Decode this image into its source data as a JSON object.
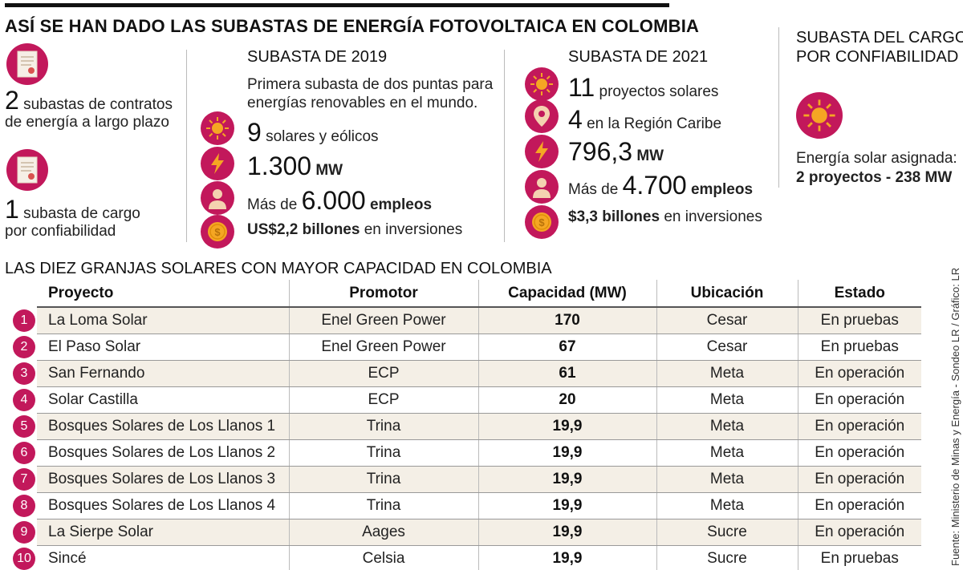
{
  "title": "ASÍ SE HAN DADO LAS SUBASTAS DE ENERGÍA FOTOVOLTAICA EN COLOMBIA",
  "left_panel": {
    "stat1_num": "2",
    "stat1_text_a": "subastas de contratos",
    "stat1_text_b": "de energía a largo plazo",
    "stat2_num": "1",
    "stat2_text_a": "subasta de cargo",
    "stat2_text_b": "por confiabilidad"
  },
  "subasta_2019": {
    "heading": "SUBASTA DE 2019",
    "description": "Primera subasta de dos puntas para energías renovables en el mundo.",
    "solares_num": "9",
    "solares_text": "solares y eólicos",
    "mw_num": "1.300",
    "mw_unit": "MW",
    "empleos_pre": "Más de",
    "empleos_num": "6.000",
    "empleos_unit": "empleos",
    "inversion_bold": "US$2,2 billones",
    "inversion_text": "en inversiones"
  },
  "subasta_2021": {
    "heading": "SUBASTA DE 2021",
    "proyectos_num": "11",
    "proyectos_text": "proyectos solares",
    "caribe_num": "4",
    "caribe_text": "en la Región Caribe",
    "mw_num": "796,3",
    "mw_unit": "MW",
    "empleos_pre": "Más de",
    "empleos_num": "4.700",
    "empleos_unit": "empleos",
    "inversion_bold": "$3,3 billones",
    "inversion_text": "en inversiones"
  },
  "cargo": {
    "heading_a": "SUBASTA DEL CARGO",
    "heading_b": "POR CONFIABILIDAD",
    "text": "Energía solar asignada:",
    "bold": "2 proyectos - 238 MW"
  },
  "table_title": "LAS DIEZ GRANJAS SOLARES CON MAYOR CAPACIDAD EN COLOMBIA",
  "source": "Fuente: Ministerio de Minas y Energía - Sondeo LR / Gráfico: LR",
  "chart_data": {
    "type": "table",
    "title": "LAS DIEZ GRANJAS SOLARES CON MAYOR CAPACIDAD EN COLOMBIA",
    "columns": [
      "Proyecto",
      "Promotor",
      "Capacidad (MW)",
      "Ubicación",
      "Estado"
    ],
    "rows": [
      {
        "rank": "1",
        "proyecto": "La Loma Solar",
        "promotor": "Enel Green Power",
        "capacidad": "170",
        "ubicacion": "Cesar",
        "estado": "En pruebas"
      },
      {
        "rank": "2",
        "proyecto": "El Paso Solar",
        "promotor": "Enel Green Power",
        "capacidad": "67",
        "ubicacion": "Cesar",
        "estado": "En pruebas"
      },
      {
        "rank": "3",
        "proyecto": "San Fernando",
        "promotor": "ECP",
        "capacidad": "61",
        "ubicacion": "Meta",
        "estado": "En operación"
      },
      {
        "rank": "4",
        "proyecto": "Solar Castilla",
        "promotor": "ECP",
        "capacidad": "20",
        "ubicacion": "Meta",
        "estado": "En operación"
      },
      {
        "rank": "5",
        "proyecto": "Bosques Solares de Los Llanos 1",
        "promotor": "Trina",
        "capacidad": "19,9",
        "ubicacion": "Meta",
        "estado": "En operación"
      },
      {
        "rank": "6",
        "proyecto": "Bosques Solares de Los Llanos 2",
        "promotor": "Trina",
        "capacidad": "19,9",
        "ubicacion": "Meta",
        "estado": "En operación"
      },
      {
        "rank": "7",
        "proyecto": "Bosques Solares de Los Llanos 3",
        "promotor": "Trina",
        "capacidad": "19,9",
        "ubicacion": "Meta",
        "estado": "En operación"
      },
      {
        "rank": "8",
        "proyecto": "Bosques Solares de Los Llanos 4",
        "promotor": "Trina",
        "capacidad": "19,9",
        "ubicacion": "Meta",
        "estado": "En operación"
      },
      {
        "rank": "9",
        "proyecto": "La Sierpe Solar",
        "promotor": "Aages",
        "capacidad": "19,9",
        "ubicacion": "Sucre",
        "estado": "En operación"
      },
      {
        "rank": "10",
        "proyecto": "Sincé",
        "promotor": "Celsia",
        "capacidad": "19,9",
        "ubicacion": "Sucre",
        "estado": "En pruebas"
      }
    ]
  },
  "colors": {
    "accent": "#c2185b",
    "sun": "#f5a623",
    "row_shade": "#f4efe6"
  }
}
